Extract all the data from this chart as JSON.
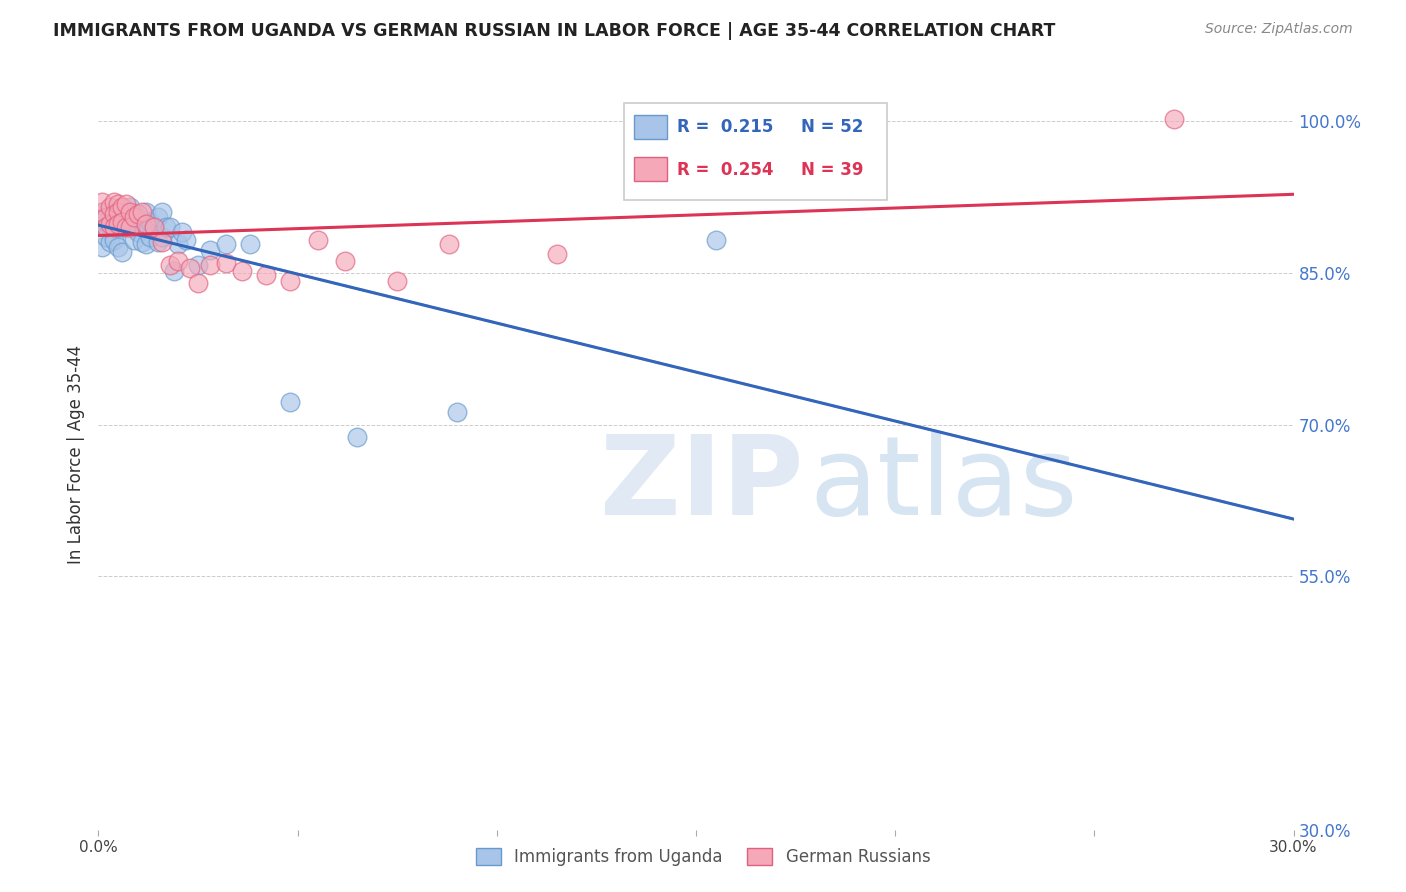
{
  "title": "IMMIGRANTS FROM UGANDA VS GERMAN RUSSIAN IN LABOR FORCE | AGE 35-44 CORRELATION CHART",
  "source": "Source: ZipAtlas.com",
  "ylabel": "In Labor Force | Age 35-44",
  "xlim": [
    0.0,
    0.3
  ],
  "ylim": [
    0.3,
    1.04
  ],
  "yticks": [
    0.3,
    0.55,
    0.7,
    0.85,
    1.0
  ],
  "ytick_labels": [
    "30.0%",
    "55.0%",
    "70.0%",
    "85.0%",
    "100.0%"
  ],
  "xticks": [
    0.0,
    0.05,
    0.1,
    0.15,
    0.2,
    0.25,
    0.3
  ],
  "xtick_labels": [
    "0.0%",
    "",
    "",
    "",
    "",
    "",
    "30.0%"
  ],
  "uganda_color": "#A8C4E8",
  "german_color": "#F4A8B8",
  "uganda_edge": "#6699CC",
  "german_edge": "#E06080",
  "legend_r_uganda": "R =  0.215",
  "legend_n_uganda": "N = 52",
  "legend_r_german": "R =  0.254",
  "legend_n_german": "N = 39",
  "trendline_uganda_color": "#3366BB",
  "trendline_german_color": "#DD3355",
  "trendline_dashed_color": "#AABBDD",
  "background_color": "#ffffff",
  "grid_color": "#cccccc",
  "title_color": "#222222",
  "tick_color_right": "#4477CC",
  "uganda_x": [
    0.001,
    0.001,
    0.002,
    0.002,
    0.002,
    0.003,
    0.003,
    0.003,
    0.004,
    0.004,
    0.004,
    0.005,
    0.005,
    0.005,
    0.006,
    0.006,
    0.006,
    0.007,
    0.007,
    0.008,
    0.008,
    0.009,
    0.009,
    0.009,
    0.01,
    0.01,
    0.011,
    0.011,
    0.012,
    0.012,
    0.012,
    0.013,
    0.013,
    0.014,
    0.015,
    0.015,
    0.016,
    0.016,
    0.017,
    0.018,
    0.019,
    0.02,
    0.021,
    0.022,
    0.025,
    0.028,
    0.032,
    0.038,
    0.048,
    0.065,
    0.09,
    0.155
  ],
  "uganda_y": [
    0.875,
    0.91,
    0.895,
    0.9,
    0.885,
    0.895,
    0.905,
    0.88,
    0.895,
    0.91,
    0.882,
    0.9,
    0.895,
    0.875,
    0.908,
    0.895,
    0.87,
    0.91,
    0.895,
    0.915,
    0.9,
    0.908,
    0.895,
    0.882,
    0.905,
    0.89,
    0.895,
    0.88,
    0.91,
    0.895,
    0.878,
    0.9,
    0.885,
    0.895,
    0.905,
    0.88,
    0.91,
    0.885,
    0.895,
    0.895,
    0.852,
    0.878,
    0.89,
    0.882,
    0.858,
    0.872,
    0.878,
    0.878,
    0.722,
    0.688,
    0.712,
    0.882
  ],
  "german_x": [
    0.001,
    0.001,
    0.002,
    0.002,
    0.003,
    0.003,
    0.004,
    0.004,
    0.004,
    0.005,
    0.005,
    0.005,
    0.006,
    0.006,
    0.007,
    0.007,
    0.008,
    0.008,
    0.009,
    0.01,
    0.011,
    0.012,
    0.014,
    0.016,
    0.018,
    0.02,
    0.023,
    0.025,
    0.028,
    0.032,
    0.036,
    0.042,
    0.048,
    0.055,
    0.062,
    0.075,
    0.088,
    0.115,
    0.27
  ],
  "german_y": [
    0.91,
    0.92,
    0.905,
    0.895,
    0.915,
    0.898,
    0.92,
    0.908,
    0.895,
    0.918,
    0.91,
    0.898,
    0.915,
    0.9,
    0.918,
    0.895,
    0.91,
    0.895,
    0.905,
    0.908,
    0.91,
    0.898,
    0.895,
    0.88,
    0.858,
    0.862,
    0.855,
    0.84,
    0.858,
    0.86,
    0.852,
    0.848,
    0.842,
    0.882,
    0.862,
    0.842,
    0.878,
    0.868,
    1.002
  ],
  "trendline_x_start": 0.0,
  "trendline_x_end": 0.3
}
